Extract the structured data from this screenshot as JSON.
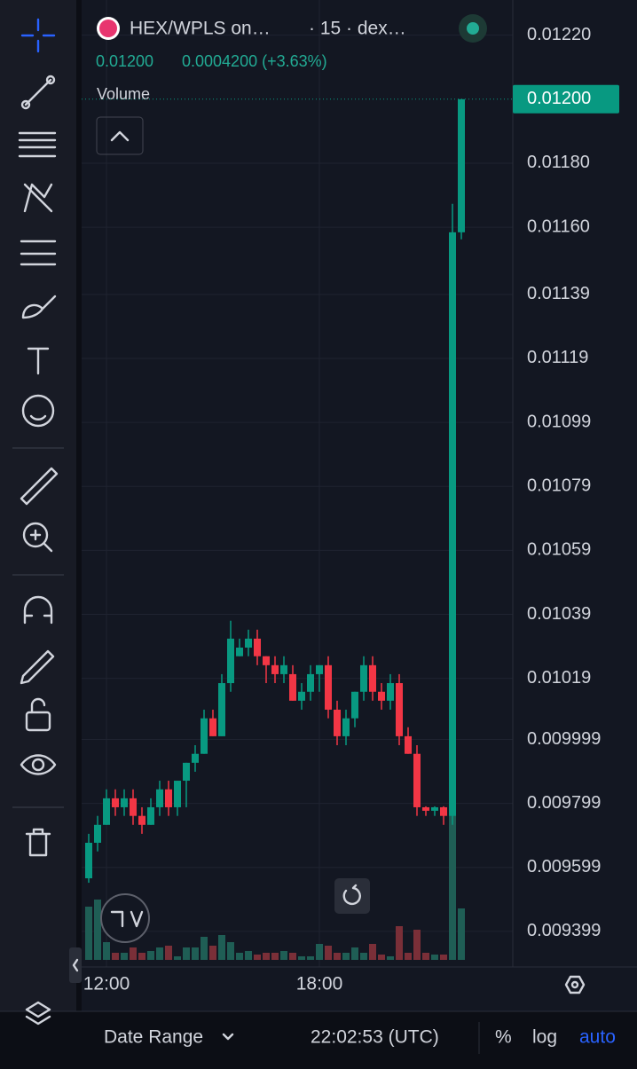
{
  "header": {
    "symbol": "HEX/WPLS on…",
    "interval": "· 15 · dex…",
    "price": "0.01200",
    "change": "0.0004200 (+3.63%)"
  },
  "footer": {
    "date_range": "Date Range",
    "time": "22:02:53 (UTC)",
    "percent": "%",
    "log": "log",
    "auto": "auto"
  },
  "chart_data": {
    "type": "candlestick",
    "volume_label": "Volume",
    "categories": [
      null,
      null,
      "12:00",
      null,
      null,
      null,
      null,
      null,
      null,
      null,
      null,
      null,
      null,
      null,
      null,
      null,
      null,
      null,
      null,
      null,
      null,
      null,
      null,
      null,
      null,
      null,
      "18:00",
      null,
      null,
      null,
      null,
      null,
      null,
      null,
      null,
      null,
      null,
      null,
      null,
      null,
      null,
      null,
      null
    ],
    "open": [
      0.009565,
      0.009676,
      0.009732,
      0.009815,
      0.009787,
      0.009815,
      0.00976,
      0.009732,
      0.009787,
      0.009843,
      0.009787,
      0.00987,
      0.009926,
      0.009954,
      0.010065,
      0.010009,
      0.010175,
      0.010259,
      0.010286,
      0.010314,
      0.010259,
      0.010231,
      0.010203,
      0.010203,
      0.01012,
      0.010148,
      0.010203,
      0.010231,
      0.010092,
      0.010009,
      0.010065,
      0.010148,
      0.010231,
      0.010148,
      0.01012,
      0.010175,
      0.010009,
      0.009954,
      0.009787,
      0.009776,
      0.009787,
      0.00976,
      0.011584
    ],
    "high": [
      0.009704,
      0.00976,
      0.009843,
      0.009843,
      0.009843,
      0.009843,
      0.009787,
      0.009815,
      0.00987,
      0.00987,
      0.00987,
      0.009926,
      0.009981,
      0.010092,
      0.010092,
      0.010203,
      0.01037,
      0.010314,
      0.010342,
      0.010342,
      0.010259,
      0.010259,
      0.010259,
      0.010231,
      0.010175,
      0.010231,
      0.010231,
      0.010259,
      0.01012,
      0.010092,
      0.010148,
      0.010259,
      0.010259,
      0.010175,
      0.010203,
      0.010203,
      0.010037,
      0.009981,
      0.00979,
      0.00979,
      0.00979,
      0.011673,
      0.012
    ],
    "low": [
      0.009551,
      0.009649,
      0.009732,
      0.00976,
      0.00976,
      0.009732,
      0.009704,
      0.009732,
      0.00976,
      0.00976,
      0.00976,
      0.009787,
      0.009898,
      0.009954,
      0.010009,
      0.010009,
      0.010148,
      0.010259,
      0.010259,
      0.010231,
      0.010175,
      0.010175,
      0.010175,
      0.01012,
      0.010092,
      0.01012,
      0.010148,
      0.010065,
      0.009981,
      0.009981,
      0.010037,
      0.01012,
      0.01012,
      0.010092,
      0.010092,
      0.009981,
      0.009954,
      0.00976,
      0.00976,
      0.00976,
      0.009732,
      0.009732,
      0.011562
    ],
    "close": [
      0.009676,
      0.009732,
      0.009815,
      0.009787,
      0.009815,
      0.00976,
      0.009732,
      0.009787,
      0.009843,
      0.009787,
      0.00987,
      0.009926,
      0.009954,
      0.010065,
      0.010009,
      0.010175,
      0.010314,
      0.010286,
      0.010314,
      0.010259,
      0.010231,
      0.010203,
      0.010231,
      0.01012,
      0.010148,
      0.010203,
      0.010231,
      0.010092,
      0.010009,
      0.010065,
      0.010148,
      0.010231,
      0.010148,
      0.01012,
      0.010175,
      0.010009,
      0.009954,
      0.009787,
      0.009776,
      0.009787,
      0.00976,
      0.011584,
      0.012
    ],
    "volume": [
      60,
      68,
      20,
      8,
      8,
      14,
      8,
      10,
      14,
      16,
      4,
      14,
      14,
      26,
      16,
      28,
      20,
      8,
      10,
      6,
      8,
      8,
      10,
      8,
      4,
      4,
      18,
      16,
      8,
      8,
      14,
      8,
      18,
      6,
      4,
      38,
      8,
      34,
      8,
      6,
      6,
      168,
      58
    ],
    "up_color": "#089981",
    "down_color": "#f23645",
    "volume_up_color": "#1f5e55",
    "volume_down_color": "#7a2f38",
    "ylim": [
      0.00931,
      0.01231
    ],
    "yticks": [
      {
        "value": 0.0122,
        "label": "0.01220"
      },
      {
        "value": 0.0118,
        "label": "0.01180"
      },
      {
        "value": 0.0116,
        "label": "0.01160"
      },
      0.01139,
      0.01119,
      0.01099,
      0.01079,
      0.01059,
      0.01039,
      0.01019,
      0.009999,
      0.009799,
      0.009599,
      0.009399
    ],
    "price_line": {
      "value": 0.012,
      "label": "0.01200"
    },
    "grid": true
  }
}
